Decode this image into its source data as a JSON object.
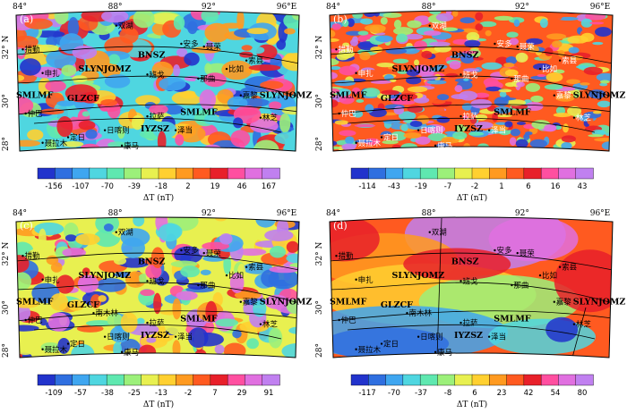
{
  "panels": [
    {
      "id": "a",
      "label": "(a)",
      "lon_ticks": [
        "84°",
        "88°",
        "92°",
        "96°E"
      ],
      "lat_ticks": [
        "32° N",
        "30°",
        "28°"
      ],
      "faults": [
        "BNSZ",
        "SLYNJOMZ",
        "SMLMF",
        "GLZCF",
        "SLYNJOMZ",
        "SMLMF",
        "IYZSZ"
      ],
      "places": [
        "双湖",
        "安多",
        "聂荣",
        "索县",
        "比如",
        "申扎",
        "班戈",
        "那曲",
        "嘉黎",
        "仲巴",
        "拉萨",
        "林芝",
        "日喀则",
        "泽当",
        "聂拉木",
        "定日",
        "康马",
        "措勤"
      ],
      "colorbar": {
        "ticks": [
          "-156",
          "-107",
          "-70",
          "-39",
          "-18",
          "2",
          "19",
          "46",
          "167"
        ],
        "label": "ΔT (nT)"
      }
    },
    {
      "id": "b",
      "label": "(b)",
      "lon_ticks": [
        "84°",
        "88°",
        "92°",
        "96°E"
      ],
      "lat_ticks": [
        "32° N",
        "30°",
        "28°"
      ],
      "faults": [
        "BNSZ",
        "SLYNJOMZ",
        "SMLMF",
        "GLZCF",
        "SLYNJOMZ",
        "SMLMF",
        "IYZSZ"
      ],
      "places": [
        "双湖",
        "安多",
        "聂荣",
        "索县",
        "比如",
        "申扎",
        "班戈",
        "那曲",
        "嘉黎",
        "仲巴",
        "拉萨",
        "林芝",
        "日喀则",
        "泽当",
        "聂拉木",
        "定日",
        "康马",
        "措勤"
      ],
      "colorbar": {
        "ticks": [
          "-114",
          "-43",
          "-19",
          "-7",
          "-2",
          "1",
          "6",
          "16",
          "43"
        ],
        "label": "ΔT (nT)"
      }
    },
    {
      "id": "c",
      "label": "(c)",
      "lon_ticks": [
        "84°",
        "88°",
        "92°",
        "96°E"
      ],
      "lat_ticks": [
        "32° N",
        "30°",
        "28°"
      ],
      "faults": [
        "BNSZ",
        "SLYNJOMZ",
        "SMLMF",
        "GLZCF",
        "SLYNJOMZ",
        "SMLMF",
        "IYZSZ"
      ],
      "places": [
        "双湖",
        "安多",
        "聂荣",
        "索县",
        "比如",
        "申扎",
        "班戈",
        "那曲",
        "嘉黎",
        "仲巴",
        "拉萨",
        "南木林",
        "林芝",
        "日喀则",
        "泽当",
        "聂拉木",
        "定日",
        "康马",
        "措勤"
      ],
      "colorbar": {
        "ticks": [
          "-109",
          "-57",
          "-38",
          "-25",
          "-13",
          "-2",
          "7",
          "29",
          "91"
        ],
        "label": "ΔT (nT)"
      }
    },
    {
      "id": "d",
      "label": "(d)",
      "lon_ticks": [
        "84°",
        "88°",
        "92°",
        "96°E"
      ],
      "lat_ticks": [
        "32° N",
        "30°",
        "28°"
      ],
      "faults": [
        "BNSZ",
        "SLYNJOMZ",
        "SMLMF",
        "GLZCF",
        "SLYNJOMZ",
        "SMLMF",
        "IYZSZ"
      ],
      "places": [
        "双湖",
        "安多",
        "聂荣",
        "索县",
        "比如",
        "申扎",
        "班戈",
        "那曲",
        "嘉黎",
        "仲巴",
        "拉萨",
        "南木林",
        "林芝",
        "日喀则",
        "泽当",
        "聂拉木",
        "定日",
        "康马",
        "措勤"
      ],
      "colorbar": {
        "ticks": [
          "-117",
          "-70",
          "-37",
          "-8",
          "6",
          "23",
          "42",
          "54",
          "80"
        ],
        "label": "ΔT (nT)"
      }
    }
  ],
  "palette": [
    "#2233cc",
    "#2f6fe0",
    "#3fa6f0",
    "#4fd6e0",
    "#5fe8b0",
    "#9cf07a",
    "#e8f050",
    "#ffd030",
    "#ff9a20",
    "#ff5a20",
    "#e8202a",
    "#ff4fa0",
    "#e070e0",
    "#c080f0"
  ]
}
